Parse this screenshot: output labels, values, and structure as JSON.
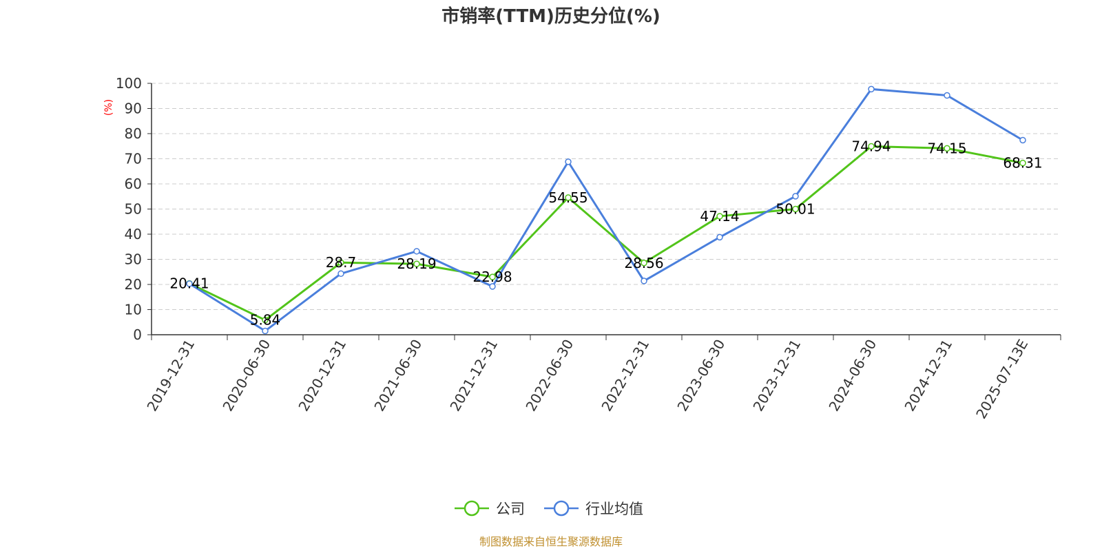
{
  "chart_data": {
    "type": "line",
    "title": "市销率(TTM)历史分位(%)",
    "ylabel": "(%)",
    "xlabel": "",
    "ylim": [
      0,
      100
    ],
    "yticks": [
      0,
      10,
      20,
      30,
      40,
      50,
      60,
      70,
      80,
      90,
      100
    ],
    "grid": true,
    "legend_position": "bottom-center",
    "categories": [
      "2019-12-31",
      "2020-06-30",
      "2020-12-31",
      "2021-06-30",
      "2021-12-31",
      "2022-06-30",
      "2022-12-31",
      "2023-06-30",
      "2023-12-31",
      "2024-06-30",
      "2024-12-31",
      "2025-07-13E"
    ],
    "series": [
      {
        "name": "公司",
        "color": "#52c41a",
        "values": [
          20.41,
          5.84,
          28.7,
          28.19,
          22.98,
          54.55,
          28.56,
          47.14,
          50.01,
          74.94,
          74.15,
          68.31
        ],
        "labels": [
          "20.41",
          "5.84",
          "28.7",
          "28.19",
          "22.98",
          "54.55",
          "28.56",
          "47.14",
          "50.01",
          "74.94",
          "74.15",
          "68.31"
        ]
      },
      {
        "name": "行业均值",
        "color": "#4a7fdc",
        "values": [
          20.3,
          1.5,
          24.3,
          33.2,
          19.2,
          68.8,
          21.4,
          38.8,
          55.1,
          97.7,
          95.2,
          77.4
        ]
      }
    ],
    "source": "制图数据来自恒生聚源数据库"
  }
}
